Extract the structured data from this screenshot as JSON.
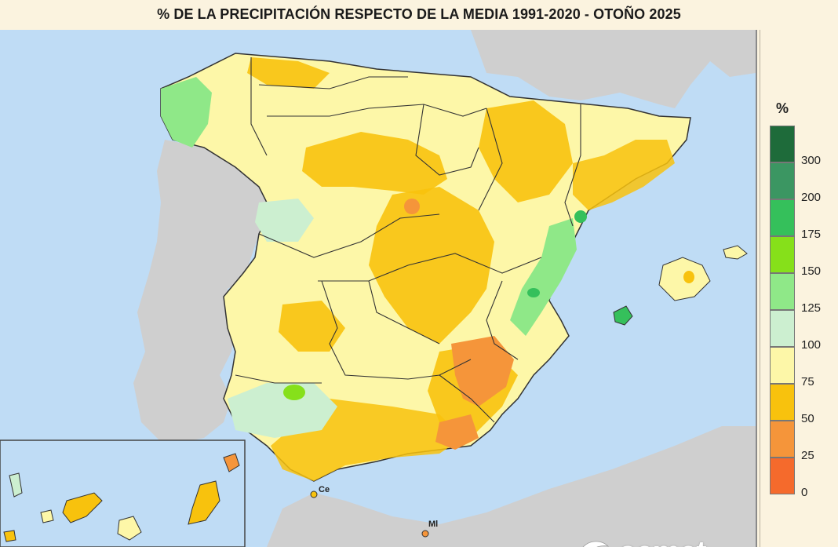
{
  "title": "% DE LA PRECIPITACIÓN RESPECTO DE LA MEDIA 1991-2020 - OTOÑO 2025",
  "legend": {
    "unit": "%",
    "classes": [
      {
        "label": "300",
        "color": "#1e6b3a"
      },
      {
        "label": "200",
        "color": "#3b9662"
      },
      {
        "label": "175",
        "color": "#35c05b"
      },
      {
        "label": "150",
        "color": "#86e01a"
      },
      {
        "label": "125",
        "color": "#8fe888"
      },
      {
        "label": "100",
        "color": "#ccefd0"
      },
      {
        "label": "75",
        "color": "#fdf7a8"
      },
      {
        "label": "50",
        "color": "#f8c20d"
      },
      {
        "label": "25",
        "color": "#f5953a"
      },
      {
        "label": "0",
        "color": "#f56a2c"
      }
    ]
  },
  "places": {
    "ceuta": "Ce",
    "melilla": "Ml"
  },
  "logo": {
    "text": "aemet",
    "icon": "aemet-logo-icon"
  },
  "colors": {
    "sea": "#bfdcf5",
    "land_other": "#cfcfcf",
    "border": "#333333"
  }
}
